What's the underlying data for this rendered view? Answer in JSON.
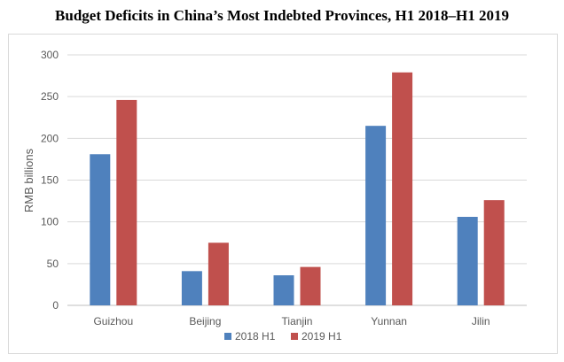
{
  "chart_data": {
    "type": "bar",
    "title": "Budget Deficits in China’s Most Indebted Provinces, H1 2018–H1 2019",
    "xlabel": "",
    "ylabel": "RMB billions",
    "categories": [
      "Guizhou",
      "Beijing",
      "Tianjin",
      "Yunnan",
      "Jilin"
    ],
    "series": [
      {
        "name": "2018 H1",
        "color": "#4f81bd",
        "values": [
          181,
          41,
          36,
          215,
          106
        ]
      },
      {
        "name": "2019 H1",
        "color": "#c0504d",
        "values": [
          246,
          75,
          46,
          279,
          126
        ]
      }
    ],
    "ylim": [
      0,
      300
    ],
    "yticks": [
      "0",
      "50",
      "100",
      "150",
      "200",
      "250",
      "300"
    ],
    "grid": true,
    "legend_position": "bottom-center"
  }
}
